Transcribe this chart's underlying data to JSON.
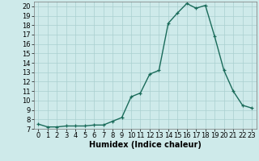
{
  "x": [
    0,
    1,
    2,
    3,
    4,
    5,
    6,
    7,
    8,
    9,
    10,
    11,
    12,
    13,
    14,
    15,
    16,
    17,
    18,
    19,
    20,
    21,
    22,
    23
  ],
  "y": [
    7.5,
    7.2,
    7.2,
    7.3,
    7.3,
    7.3,
    7.4,
    7.4,
    7.8,
    8.2,
    10.4,
    10.8,
    12.8,
    13.2,
    18.2,
    19.3,
    20.3,
    19.8,
    20.1,
    16.8,
    13.2,
    11.0,
    9.5,
    9.2
  ],
  "line_color": "#1a6b5a",
  "marker": "+",
  "marker_size": 3,
  "marker_linewidth": 0.9,
  "bg_color": "#ceeaea",
  "grid_color": "#aacfcf",
  "xlabel": "Humidex (Indice chaleur)",
  "ylim": [
    7,
    20.5
  ],
  "xlim": [
    -0.5,
    23.5
  ],
  "yticks": [
    7,
    8,
    9,
    10,
    11,
    12,
    13,
    14,
    15,
    16,
    17,
    18,
    19,
    20
  ],
  "xticks": [
    0,
    1,
    2,
    3,
    4,
    5,
    6,
    7,
    8,
    9,
    10,
    11,
    12,
    13,
    14,
    15,
    16,
    17,
    18,
    19,
    20,
    21,
    22,
    23
  ],
  "xlabel_fontsize": 7,
  "tick_fontsize": 6,
  "linewidth": 1.0
}
